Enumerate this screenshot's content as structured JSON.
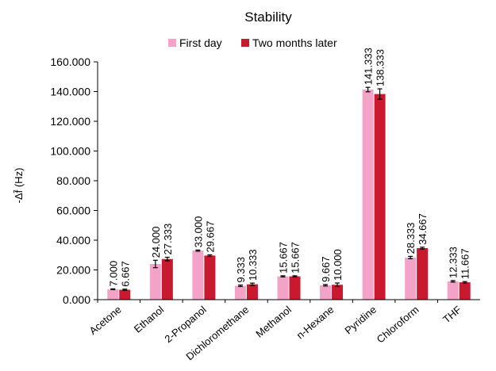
{
  "chart_data": {
    "type": "bar",
    "title": "Stability",
    "xlabel": "",
    "ylabel": "-Δf̄ (Hz)",
    "ylim": [
      0,
      160
    ],
    "yticks": [
      "0.000",
      "20.000",
      "40.000",
      "60.000",
      "80.000",
      "100.000",
      "120.000",
      "140.000",
      "160.000"
    ],
    "grid": false,
    "legend_position": "top",
    "categories": [
      "Acetone",
      "Ethanol",
      "2-Propanol",
      "Dichloromethane",
      "Methanol",
      "n-Hexane",
      "Pyridine",
      "Chloroform",
      "THF"
    ],
    "series": [
      {
        "name": "First day",
        "color": "#f4a3c8",
        "values": [
          7.0,
          24.0,
          33.0,
          9.333,
          15.667,
          9.667,
          141.333,
          28.333,
          12.333
        ],
        "labels": [
          "7.000",
          "24.000",
          "33.000",
          "9.333",
          "15.667",
          "9.667",
          "141.333",
          "28.333",
          "12.333"
        ],
        "errors": [
          0.3,
          2.5,
          0.4,
          0.5,
          0.4,
          0.5,
          1.5,
          0.8,
          0.5
        ]
      },
      {
        "name": "Two months later",
        "color": "#c8192e",
        "values": [
          6.667,
          27.333,
          29.667,
          10.333,
          15.667,
          10.0,
          138.333,
          34.667,
          11.667
        ],
        "labels": [
          "6.667",
          "27.333",
          "29.667",
          "10.333",
          "15.667",
          "10.000",
          "138.333",
          "34.667",
          "11.667"
        ],
        "errors": [
          0.4,
          1.2,
          0.5,
          0.8,
          0.4,
          1.2,
          3.5,
          0.6,
          0.5
        ]
      }
    ]
  }
}
